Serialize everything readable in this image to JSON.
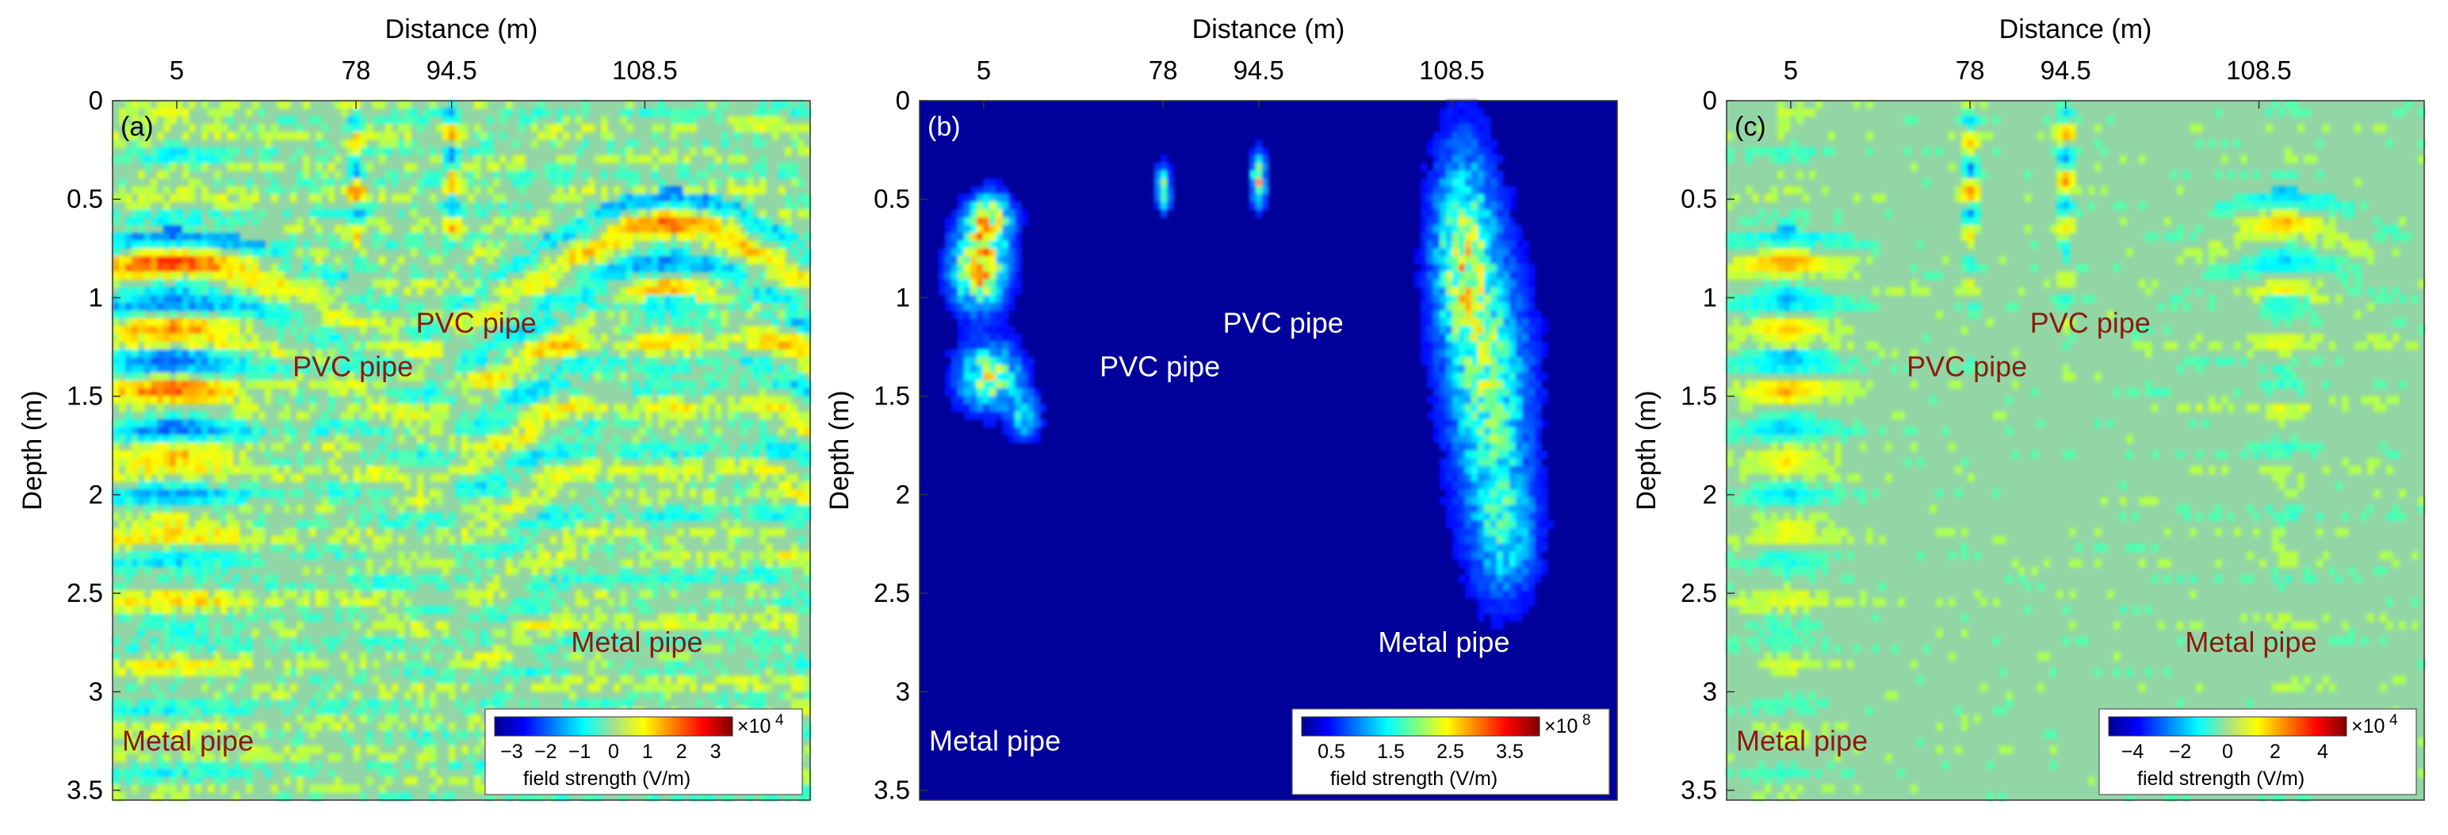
{
  "panels": [
    {
      "tag": "(a)",
      "colormap": "diverging",
      "labels": [
        {
          "text": "PVC pipe",
          "x": 78,
          "y": 1.35,
          "color": "#8b1a0a"
        },
        {
          "text": "PVC pipe",
          "x": 94.5,
          "y": 1.13,
          "color": "#8b1a0a"
        },
        {
          "text": "Metal pipe",
          "x": 108.5,
          "y": 2.75,
          "color": "#8b1a0a"
        },
        {
          "text": "Metal pipe",
          "x": 5,
          "y": 3.25,
          "color": "#8b1a0a"
        }
      ],
      "colorbar": {
        "ticks": [
          "−3",
          "−2",
          "−1",
          "0",
          "1",
          "2",
          "3"
        ],
        "exponent_base": "×10",
        "exponent_power": "4",
        "label": "field strength (V/m)"
      }
    },
    {
      "tag": "(b)",
      "colormap": "sequential",
      "labels": [
        {
          "text": "PVC pipe",
          "x": 78,
          "y": 1.35,
          "color": "#ffffff"
        },
        {
          "text": "PVC pipe",
          "x": 94.5,
          "y": 1.13,
          "color": "#ffffff"
        },
        {
          "text": "Metal pipe",
          "x": 108.5,
          "y": 2.75,
          "color": "#ffffff"
        },
        {
          "text": "Metal pipe",
          "x": 5,
          "y": 3.25,
          "color": "#ffffff"
        }
      ],
      "colorbar": {
        "ticks": [
          "0.5",
          "1.5",
          "2.5",
          "3.5"
        ],
        "exponent_base": "×10",
        "exponent_power": "8",
        "label": "field strength (V/m)"
      }
    },
    {
      "tag": "(c)",
      "colormap": "diverging",
      "labels": [
        {
          "text": "PVC pipe",
          "x": 78,
          "y": 1.35,
          "color": "#8b1a0a"
        },
        {
          "text": "PVC pipe",
          "x": 94.5,
          "y": 1.13,
          "color": "#8b1a0a"
        },
        {
          "text": "Metal pipe",
          "x": 108.5,
          "y": 2.75,
          "color": "#8b1a0a"
        },
        {
          "text": "Metal pipe",
          "x": 5,
          "y": 3.25,
          "color": "#8b1a0a"
        }
      ],
      "colorbar": {
        "ticks": [
          "−4",
          "−2",
          "0",
          "2",
          "4"
        ],
        "exponent_base": "×10",
        "exponent_power": "4",
        "label": "field strength (V/m)"
      }
    }
  ],
  "chart_data": [
    {
      "type": "heatmap",
      "panel": "(a)",
      "xlabel": "Distance (m)",
      "ylabel": "Depth (m)",
      "x_ticks": [
        "5",
        "78",
        "94.5",
        "108.5"
      ],
      "y_ticks": [
        "0",
        "0.5",
        "1",
        "1.5",
        "2",
        "2.5",
        "3",
        "3.5"
      ],
      "ylim": [
        0,
        3.55
      ],
      "colorbar_range": [
        -3.5,
        3.5
      ],
      "colorbar_ticks": [
        -3,
        -2,
        -1,
        0,
        1,
        2,
        3
      ],
      "colorbar_multiplier": "×10^4",
      "colorbar_label": "field strength (V/m)",
      "annotations": [
        "PVC pipe",
        "PVC pipe",
        "Metal pipe",
        "Metal pipe"
      ]
    },
    {
      "type": "heatmap",
      "panel": "(b)",
      "xlabel": "Distance (m)",
      "ylabel": "Depth (m)",
      "x_ticks": [
        "5",
        "78",
        "94.5",
        "108.5"
      ],
      "y_ticks": [
        "0",
        "0.5",
        "1",
        "1.5",
        "2",
        "2.5",
        "3",
        "3.5"
      ],
      "ylim": [
        0,
        3.55
      ],
      "colorbar_range": [
        0,
        4
      ],
      "colorbar_ticks": [
        0.5,
        1.5,
        2.5,
        3.5
      ],
      "colorbar_multiplier": "×10^8",
      "colorbar_label": "field strength (V/m)",
      "annotations": [
        "PVC pipe",
        "PVC pipe",
        "Metal pipe",
        "Metal pipe"
      ]
    },
    {
      "type": "heatmap",
      "panel": "(c)",
      "xlabel": "Distance (m)",
      "ylabel": "Depth (m)",
      "x_ticks": [
        "5",
        "78",
        "94.5",
        "108.5"
      ],
      "y_ticks": [
        "0",
        "0.5",
        "1",
        "1.5",
        "2",
        "2.5",
        "3",
        "3.5"
      ],
      "ylim": [
        0,
        3.55
      ],
      "colorbar_range": [
        -5,
        5
      ],
      "colorbar_ticks": [
        -4,
        -2,
        0,
        2,
        4
      ],
      "colorbar_multiplier": "×10^4",
      "colorbar_label": "field strength (V/m)",
      "annotations": [
        "PVC pipe",
        "PVC pipe",
        "Metal pipe",
        "Metal pipe"
      ]
    }
  ]
}
